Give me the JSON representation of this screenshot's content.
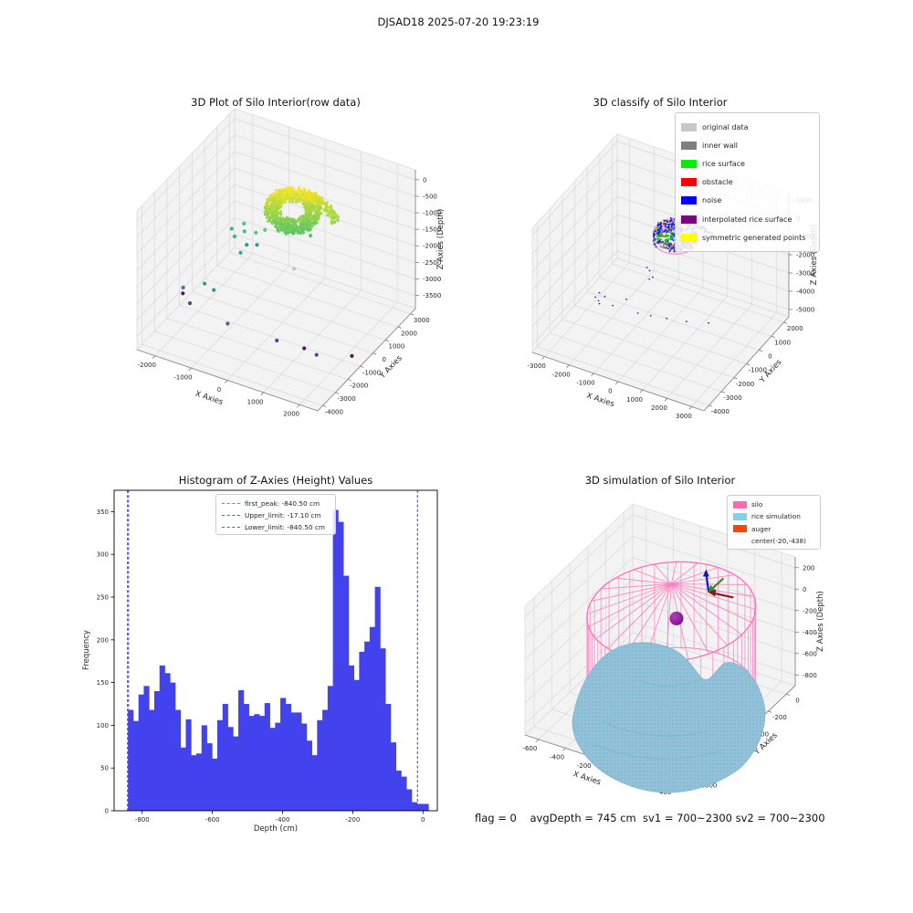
{
  "figure": {
    "suptitle": "DJSAD18 2025-07-20 19:23:19",
    "footer": "flag = 0    avgDepth = 745 cm  sv1 = 700~2300 sv2 = 700~2300"
  },
  "chart_data": [
    {
      "id": "raw",
      "type": "scatter",
      "projection": "3d",
      "title": "3D Plot of Silo Interior(row data)",
      "xlabel": "X Axies",
      "ylabel": "Y Axies",
      "zlabel": "Z Axies (Depth)",
      "xticks": [
        -2000,
        -1000,
        0,
        1000,
        2000
      ],
      "yticks": [
        3000,
        2000,
        1000,
        0,
        -1000,
        -2000,
        -3000,
        -4000
      ],
      "zticks": [
        0,
        -500,
        -1000,
        -1500,
        -2000,
        -2500,
        -3000,
        -3500
      ],
      "xlim": [
        -2500,
        2500
      ],
      "ylim": [
        -4400,
        3400
      ],
      "zlim": [
        -3900,
        300
      ],
      "point_cloud": {
        "shape": "torus-like dense scan of rice surface",
        "center": [
          250,
          100,
          -450
        ],
        "count": 1050,
        "color_low": "#53c466",
        "color_high": "#fde725"
      },
      "outliers": [
        [
          2250,
          -950,
          -3700,
          "#440154"
        ],
        [
          1490,
          -1580,
          -3700,
          "#46327e"
        ],
        [
          1100,
          -1440,
          -3700,
          "#440154"
        ],
        [
          340,
          -1430,
          -3750,
          "#46327e"
        ],
        [
          -990,
          -1510,
          -3700,
          "#3b518b"
        ],
        [
          -2190,
          -1070,
          -3700,
          "#46327e"
        ],
        [
          -2500,
          -730,
          -3650,
          "#440154"
        ],
        [
          -2480,
          -770,
          -3450,
          "#2c6e8e"
        ],
        [
          -1990,
          -470,
          -3270,
          "#21918c"
        ],
        [
          -1670,
          -660,
          -3270,
          "#25858e"
        ],
        [
          -1200,
          -350,
          -1600,
          "#27ad81"
        ],
        [
          -1000,
          -150,
          -1450,
          "#35b779"
        ],
        [
          -850,
          -400,
          -1700,
          "#21918c"
        ],
        [
          -700,
          -100,
          -1400,
          "#47c16e"
        ],
        [
          -1100,
          100,
          -1350,
          "#3bbb75"
        ],
        [
          -600,
          -300,
          -1650,
          "#24868e"
        ],
        [
          -500,
          50,
          -1300,
          "#52c569"
        ],
        [
          -950,
          -600,
          -1900,
          "#1f998a"
        ],
        [
          -1350,
          -150,
          -1500,
          "#29af7f"
        ],
        [
          425,
          -290,
          -2000,
          "#c9b8dd"
        ],
        [
          500,
          800,
          -1400,
          "#4ac16d"
        ]
      ]
    },
    {
      "id": "classify",
      "type": "scatter",
      "projection": "3d",
      "title": "3D classify of Silo Interior",
      "xlabel": "X Axies",
      "ylabel": "Y Axies",
      "zlabel": "Z Axies (Depth)",
      "xticks": [
        -3000,
        -2000,
        -1000,
        0,
        1000,
        2000,
        3000
      ],
      "yticks": [
        2000,
        1000,
        0,
        -1000,
        -2000,
        -3000,
        -4000
      ],
      "zticks": [
        1000,
        0,
        -1000,
        -2000,
        -3000,
        -4000,
        -5000
      ],
      "xlim": [
        -3500,
        3500
      ],
      "ylim": [
        -4400,
        2400
      ],
      "zlim": [
        -5400,
        1400
      ],
      "legend": [
        {
          "label": "original data",
          "color": "#c8c8c8"
        },
        {
          "label": "inner wall",
          "color": "#7f7f7f"
        },
        {
          "label": "rice surface",
          "color": "#00ee00"
        },
        {
          "label": "obstacle",
          "color": "#ff0000"
        },
        {
          "label": "noise",
          "color": "#0000ff"
        },
        {
          "label": "interpolated rice surface",
          "color": "#800080"
        },
        {
          "label": "symmetric generated points",
          "color": "#ffff00"
        }
      ],
      "cluster": {
        "center": [
          100,
          0,
          -600
        ],
        "count": 430,
        "classes": [
          "noise",
          "inner wall",
          "rice surface",
          "interpolated rice surface",
          "obstacle"
        ]
      },
      "noise_points": [
        [
          -2630,
          -1060,
          -4500
        ],
        [
          -2450,
          -1150,
          -4550
        ],
        [
          -2300,
          -950,
          -4400
        ],
        [
          -1900,
          -1100,
          -4600
        ],
        [
          -1500,
          -800,
          -4300
        ],
        [
          -900,
          -1050,
          -4600
        ],
        [
          -400,
          -1000,
          -4550
        ],
        [
          200,
          -900,
          -4500
        ],
        [
          900,
          -700,
          -4500
        ],
        [
          1630,
          -360,
          -4500
        ],
        [
          -2550,
          -900,
          -4350
        ],
        [
          -2380,
          -1230,
          -4620
        ],
        [
          -700,
          -500,
          -2600
        ],
        [
          -500,
          -650,
          -2750
        ],
        [
          -850,
          -420,
          -2550
        ],
        [
          -600,
          -720,
          -2850
        ]
      ]
    },
    {
      "id": "hist",
      "type": "bar",
      "title": "Histogram of Z-Axies (Height) Values",
      "xlabel": "Depth (cm)",
      "ylabel": "Frequency",
      "xticks": [
        -800,
        -600,
        -400,
        -200,
        0
      ],
      "yticks": [
        0,
        50,
        100,
        150,
        200,
        250,
        300,
        350
      ],
      "xlim": [
        -880,
        41
      ],
      "ylim": [
        0,
        375
      ],
      "bar_color": "#4343ee",
      "bin_start": -840.5,
      "bin_width": 14.97,
      "values": [
        118,
        105,
        136,
        146,
        118,
        140,
        170,
        161,
        150,
        118,
        74,
        107,
        65,
        67,
        100,
        79,
        61,
        106,
        125,
        98,
        87,
        141,
        125,
        111,
        113,
        111,
        126,
        97,
        103,
        132,
        125,
        115,
        115,
        102,
        82,
        65,
        106,
        118,
        146,
        352,
        338,
        275,
        170,
        153,
        186,
        198,
        215,
        262,
        190,
        125,
        80,
        47,
        40,
        25,
        10
      ],
      "overflow_bar": {
        "x": -17.1,
        "width": 13,
        "value": 8
      },
      "vlines": [
        {
          "x": -840.5,
          "color": "#e03131",
          "style": "dashed",
          "name": "first_peak"
        },
        {
          "x": -840.5,
          "color": "#3535e0",
          "style": "dashed",
          "name": "Lower_limit"
        },
        {
          "x": -17.1,
          "color": "#3535e0",
          "style": "dashed",
          "name": "Upper_limit"
        }
      ],
      "legend": [
        {
          "label": "first_peak: -840.50 cm",
          "color": "#ff5555"
        },
        {
          "label": "Upper_limit: -17.10 cm",
          "color": "#5555ff"
        },
        {
          "label": "Lower_limit: -840.50 cm",
          "color": "#5555ff"
        }
      ]
    },
    {
      "id": "sim",
      "type": "surface",
      "projection": "3d",
      "title": "3D simulation of Silo Interior",
      "xlabel": "X Axies",
      "ylabel": "Y Axies",
      "zlabel": "Z Axies (Depth)",
      "xticks": [
        -600,
        -400,
        -200,
        0,
        200,
        400
      ],
      "yticks": [
        0,
        -200,
        -400,
        -600,
        -800,
        -1000
      ],
      "zticks": [
        200,
        0,
        -200,
        -400,
        -600,
        -800
      ],
      "xlim": [
        -700,
        500
      ],
      "ylim": [
        -1100,
        100
      ],
      "zlim": [
        -900,
        300
      ],
      "legend": [
        {
          "label": "silo",
          "color": "#ff69b4"
        },
        {
          "label": "rice simulation",
          "color": "#87ceeb"
        },
        {
          "label": "auger",
          "color": "#ff4500"
        },
        {
          "label": "center(-20,-438)",
          "color": null
        }
      ],
      "silo": {
        "center": [
          -50,
          -450
        ],
        "radius": 520,
        "z_bottom": -800,
        "z_top": 0,
        "apex_z": 260,
        "color": "#ff69b4"
      },
      "rice_color": "#8ec6dd",
      "auger_point": {
        "pos": [
          -20,
          -438,
          -60
        ],
        "color": "#7b0f86"
      }
    }
  ]
}
